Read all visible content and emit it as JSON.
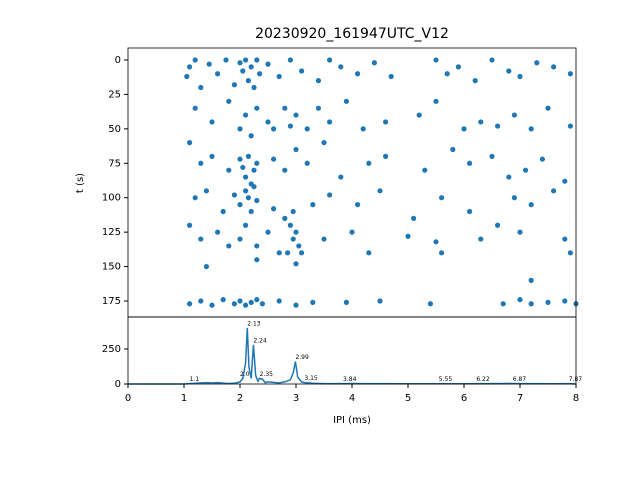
{
  "chart_data": [
    {
      "type": "scatter",
      "title": "20230920_161947UTC_V12",
      "ylabel": "t (s)",
      "color": "#1f77b4",
      "xlim": [
        0,
        8
      ],
      "ylim": [
        -8.7,
        186.6
      ],
      "y_inverted": true,
      "yticks": [
        0,
        25,
        50,
        75,
        100,
        125,
        150,
        175
      ],
      "x": [
        1.05,
        1.1,
        1.2,
        1.3,
        1.45,
        1.6,
        1.75,
        1.9,
        2.0,
        2.05,
        2.1,
        2.15,
        2.2,
        2.25,
        2.3,
        2.35,
        2.5,
        2.7,
        2.9,
        3.1,
        3.4,
        3.6,
        3.8,
        4.1,
        4.4,
        4.7,
        5.5,
        5.7,
        5.9,
        6.2,
        6.5,
        6.8,
        7.0,
        7.3,
        7.6,
        7.9,
        1.2,
        1.5,
        1.8,
        2.0,
        2.1,
        2.2,
        2.3,
        2.5,
        2.6,
        2.8,
        2.9,
        3.0,
        3.2,
        3.4,
        3.6,
        3.9,
        4.2,
        4.6,
        5.2,
        5.5,
        6.0,
        6.3,
        6.6,
        6.9,
        7.2,
        7.5,
        7.9,
        1.1,
        1.3,
        1.5,
        1.8,
        2.0,
        2.05,
        2.1,
        2.15,
        2.2,
        2.25,
        2.3,
        2.6,
        2.8,
        3.0,
        3.2,
        3.5,
        3.8,
        4.3,
        4.6,
        5.3,
        5.8,
        6.1,
        6.5,
        6.8,
        7.1,
        7.4,
        7.8,
        1.2,
        1.4,
        1.7,
        1.9,
        2.0,
        2.1,
        2.15,
        2.2,
        2.25,
        2.3,
        2.6,
        2.8,
        2.9,
        2.95,
        3.0,
        3.05,
        3.1,
        2.85,
        2.95,
        3.3,
        3.6,
        4.1,
        4.5,
        5.1,
        5.6,
        6.1,
        6.6,
        6.9,
        7.2,
        7.6,
        1.1,
        1.3,
        1.6,
        1.8,
        2.0,
        2.1,
        2.3,
        2.5,
        2.7,
        3.5,
        4.0,
        5.0,
        5.5,
        6.3,
        7.0,
        7.8,
        1.4,
        2.3,
        3.0,
        4.3,
        5.6,
        7.9,
        7.2,
        1.1,
        1.3,
        1.5,
        1.7,
        1.9,
        2.0,
        2.1,
        2.2,
        2.3,
        2.4,
        2.7,
        3.0,
        3.3,
        3.9,
        4.5,
        5.4,
        6.7,
        7.0,
        7.2,
        7.5,
        7.8,
        8.0
      ],
      "y": [
        12,
        5,
        0,
        20,
        3,
        10,
        0,
        18,
        2,
        8,
        0,
        15,
        5,
        20,
        0,
        10,
        3,
        12,
        0,
        8,
        15,
        0,
        5,
        10,
        2,
        12,
        0,
        10,
        5,
        15,
        0,
        8,
        12,
        2,
        5,
        10,
        35,
        45,
        30,
        50,
        40,
        55,
        35,
        45,
        50,
        35,
        48,
        40,
        50,
        35,
        45,
        30,
        50,
        45,
        40,
        30,
        50,
        45,
        48,
        40,
        50,
        35,
        48,
        60,
        75,
        70,
        80,
        72,
        78,
        85,
        70,
        90,
        80,
        75,
        72,
        80,
        65,
        75,
        60,
        85,
        75,
        70,
        80,
        65,
        75,
        70,
        85,
        80,
        72,
        88,
        100,
        95,
        110,
        98,
        105,
        95,
        100,
        110,
        92,
        102,
        108,
        115,
        120,
        130,
        125,
        135,
        140,
        140,
        110,
        105,
        98,
        105,
        95,
        115,
        100,
        110,
        120,
        100,
        105,
        95,
        120,
        130,
        125,
        135,
        130,
        120,
        135,
        125,
        140,
        130,
        125,
        128,
        132,
        130,
        125,
        130,
        150,
        145,
        148,
        140,
        140,
        140,
        160,
        177,
        175,
        178,
        174,
        177,
        175,
        178,
        176,
        174,
        177,
        175,
        178,
        176,
        176,
        175,
        177,
        177,
        174,
        177,
        176,
        175,
        177
      ]
    },
    {
      "type": "line",
      "xlabel": "IPI (ms)",
      "color": "#1f77b4",
      "xlim": [
        0,
        8
      ],
      "ylim": [
        0,
        478
      ],
      "xticks": [
        0,
        1,
        2,
        3,
        4,
        5,
        6,
        7,
        8
      ],
      "yticks": [
        0,
        250
      ],
      "x": [
        0,
        1.0,
        1.1,
        1.2,
        1.3,
        1.4,
        1.5,
        1.6,
        1.7,
        1.8,
        1.9,
        2.0,
        2.05,
        2.1,
        2.13,
        2.16,
        2.2,
        2.24,
        2.28,
        2.32,
        2.35,
        2.4,
        2.45,
        2.5,
        2.6,
        2.7,
        2.8,
        2.9,
        2.95,
        2.99,
        3.03,
        3.1,
        3.15,
        3.3,
        3.5,
        3.84,
        4.0,
        4.2,
        4.4,
        4.87,
        5.55,
        6.0,
        6.22,
        6.5,
        6.87,
        7.0,
        7.3,
        7.6,
        7.87,
        8
      ],
      "values": [
        0,
        0,
        3,
        5,
        8,
        10,
        8,
        10,
        6,
        4,
        5,
        15,
        40,
        150,
        400,
        120,
        40,
        280,
        60,
        20,
        40,
        35,
        10,
        15,
        12,
        8,
        15,
        30,
        80,
        160,
        50,
        15,
        10,
        5,
        3,
        3,
        4,
        3,
        3,
        2,
        2,
        2,
        3,
        3,
        4,
        3,
        3,
        2,
        3,
        0
      ],
      "annotations": [
        {
          "x": 2.13,
          "y": 400,
          "text": "2.13"
        },
        {
          "x": 2.24,
          "y": 280,
          "text": "2.24"
        },
        {
          "x": 2.99,
          "y": 160,
          "text": "2.99"
        },
        {
          "x": 2.35,
          "y": 40,
          "text": "2.35"
        },
        {
          "x": 2.0,
          "y": 40,
          "text": "2.0"
        },
        {
          "x": 1.1,
          "y": 3,
          "text": "1.1"
        },
        {
          "x": 3.15,
          "y": 10,
          "text": "3.15"
        },
        {
          "x": 3.84,
          "y": 3,
          "text": "3.84"
        },
        {
          "x": 5.55,
          "y": 2,
          "text": "5.55"
        },
        {
          "x": 6.22,
          "y": 3,
          "text": "6.22"
        },
        {
          "x": 6.87,
          "y": 4,
          "text": "6.87"
        },
        {
          "x": 7.87,
          "y": 3,
          "text": "7.87"
        }
      ]
    }
  ]
}
